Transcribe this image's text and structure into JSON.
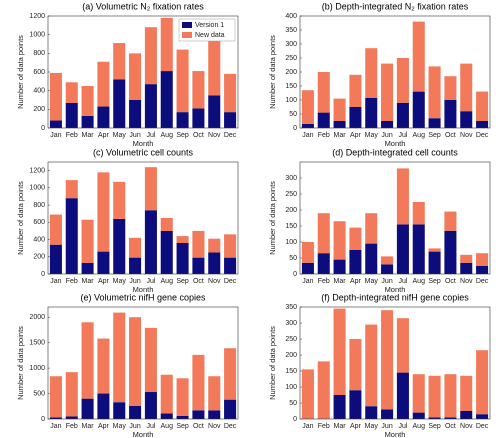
{
  "chart_data": [
    {
      "type": "bar",
      "title": "(a) Volumetric N₂ fixation rates",
      "xlabel": "Month",
      "ylabel": "Number of data points",
      "categories": [
        "Jan",
        "Feb",
        "Mar",
        "Apr",
        "May",
        "Jun",
        "Jul",
        "Aug",
        "Sep",
        "Oct",
        "Nov",
        "Dec"
      ],
      "stacked": true,
      "legend": "upper right",
      "series": [
        {
          "name": "Version 1",
          "color": "#0c0c7d",
          "values": [
            80,
            270,
            130,
            230,
            520,
            300,
            470,
            610,
            170,
            210,
            350,
            170
          ]
        },
        {
          "name": "New data",
          "color": "#f2795a",
          "values": [
            510,
            220,
            320,
            480,
            390,
            500,
            610,
            570,
            670,
            400,
            600,
            410
          ]
        }
      ],
      "ylim": [
        0,
        1200
      ],
      "yticks": [
        0,
        200,
        400,
        600,
        800,
        1000,
        1200
      ]
    },
    {
      "type": "bar",
      "title": "(b) Depth-integrated N₂ fixation rates",
      "xlabel": "Month",
      "ylabel": "Number of data points",
      "categories": [
        "Jan",
        "Feb",
        "Mar",
        "Apr",
        "May",
        "Jun",
        "Jul",
        "Aug",
        "Sep",
        "Oct",
        "Nov",
        "Dec"
      ],
      "stacked": true,
      "series": [
        {
          "color": "#0c0c7d",
          "values": [
            15,
            55,
            25,
            75,
            108,
            25,
            90,
            130,
            35,
            100,
            60,
            25
          ]
        },
        {
          "color": "#f2795a",
          "values": [
            120,
            145,
            80,
            115,
            177,
            205,
            160,
            250,
            185,
            85,
            170,
            105
          ]
        }
      ],
      "ylim": [
        0,
        400
      ],
      "yticks": [
        0,
        50,
        100,
        150,
        200,
        250,
        300,
        350,
        400
      ]
    },
    {
      "type": "bar",
      "title": "(c) Volumetric cell counts",
      "xlabel": "Month",
      "ylabel": "Number of data points",
      "categories": [
        "Jan",
        "Feb",
        "Mar",
        "Apr",
        "May",
        "Jun",
        "Jul",
        "Aug",
        "Sep",
        "Oct",
        "Nov",
        "Dec"
      ],
      "stacked": true,
      "series": [
        {
          "color": "#0c0c7d",
          "values": [
            340,
            880,
            130,
            260,
            640,
            190,
            740,
            500,
            360,
            190,
            250,
            190
          ]
        },
        {
          "color": "#f2795a",
          "values": [
            350,
            210,
            500,
            920,
            430,
            230,
            500,
            150,
            80,
            310,
            160,
            270
          ]
        }
      ],
      "ylim": [
        0,
        1300
      ],
      "yticks": [
        0,
        200,
        400,
        600,
        800,
        1000,
        1200
      ]
    },
    {
      "type": "bar",
      "title": "(d) Depth-integrated cell counts",
      "xlabel": "Month",
      "ylabel": "Number of data points",
      "categories": [
        "Jan",
        "Feb",
        "Mar",
        "Apr",
        "May",
        "Jun",
        "Jul",
        "Aug",
        "Sep",
        "Oct",
        "Nov",
        "Dec"
      ],
      "stacked": true,
      "series": [
        {
          "color": "#0c0c7d",
          "values": [
            35,
            65,
            45,
            75,
            95,
            30,
            155,
            155,
            70,
            135,
            35,
            25
          ]
        },
        {
          "color": "#f2795a",
          "values": [
            65,
            125,
            120,
            70,
            95,
            25,
            175,
            70,
            10,
            60,
            25,
            40
          ]
        }
      ],
      "ylim": [
        0,
        350
      ],
      "yticks": [
        0,
        50,
        100,
        150,
        200,
        250,
        300
      ]
    },
    {
      "type": "bar",
      "title": "(e) Volumetric nifH gene copies",
      "xlabel": "Month",
      "ylabel": "Number of data points",
      "categories": [
        "Jan",
        "Feb",
        "Mar",
        "Apr",
        "May",
        "Jun",
        "Jul",
        "Aug",
        "Sep",
        "Oct",
        "Nov",
        "Dec"
      ],
      "stacked": true,
      "series": [
        {
          "color": "#0c0c7d",
          "values": [
            30,
            50,
            400,
            500,
            330,
            260,
            530,
            110,
            60,
            170,
            170,
            380
          ]
        },
        {
          "color": "#f2795a",
          "values": [
            810,
            870,
            1500,
            1080,
            1760,
            1740,
            1260,
            760,
            740,
            1090,
            670,
            1010
          ]
        }
      ],
      "ylim": [
        0,
        2200
      ],
      "yticks": [
        0,
        500,
        1000,
        1500,
        2000
      ]
    },
    {
      "type": "bar",
      "title": "(f) Depth-integrated nifH gene copies",
      "xlabel": "Month",
      "ylabel": "Number of data points",
      "categories": [
        "Jan",
        "Feb",
        "Mar",
        "Apr",
        "May",
        "Jun",
        "Jul",
        "Aug",
        "Sep",
        "Oct",
        "Nov",
        "Dec"
      ],
      "stacked": true,
      "series": [
        {
          "color": "#0c0c7d",
          "values": [
            0,
            0,
            75,
            90,
            40,
            30,
            145,
            20,
            5,
            5,
            25,
            15
          ]
        },
        {
          "color": "#f2795a",
          "values": [
            155,
            180,
            270,
            160,
            255,
            310,
            170,
            120,
            130,
            135,
            110,
            200
          ]
        }
      ],
      "ylim": [
        0,
        350
      ],
      "yticks": [
        0,
        50,
        100,
        150,
        200,
        250,
        300,
        350
      ]
    }
  ]
}
